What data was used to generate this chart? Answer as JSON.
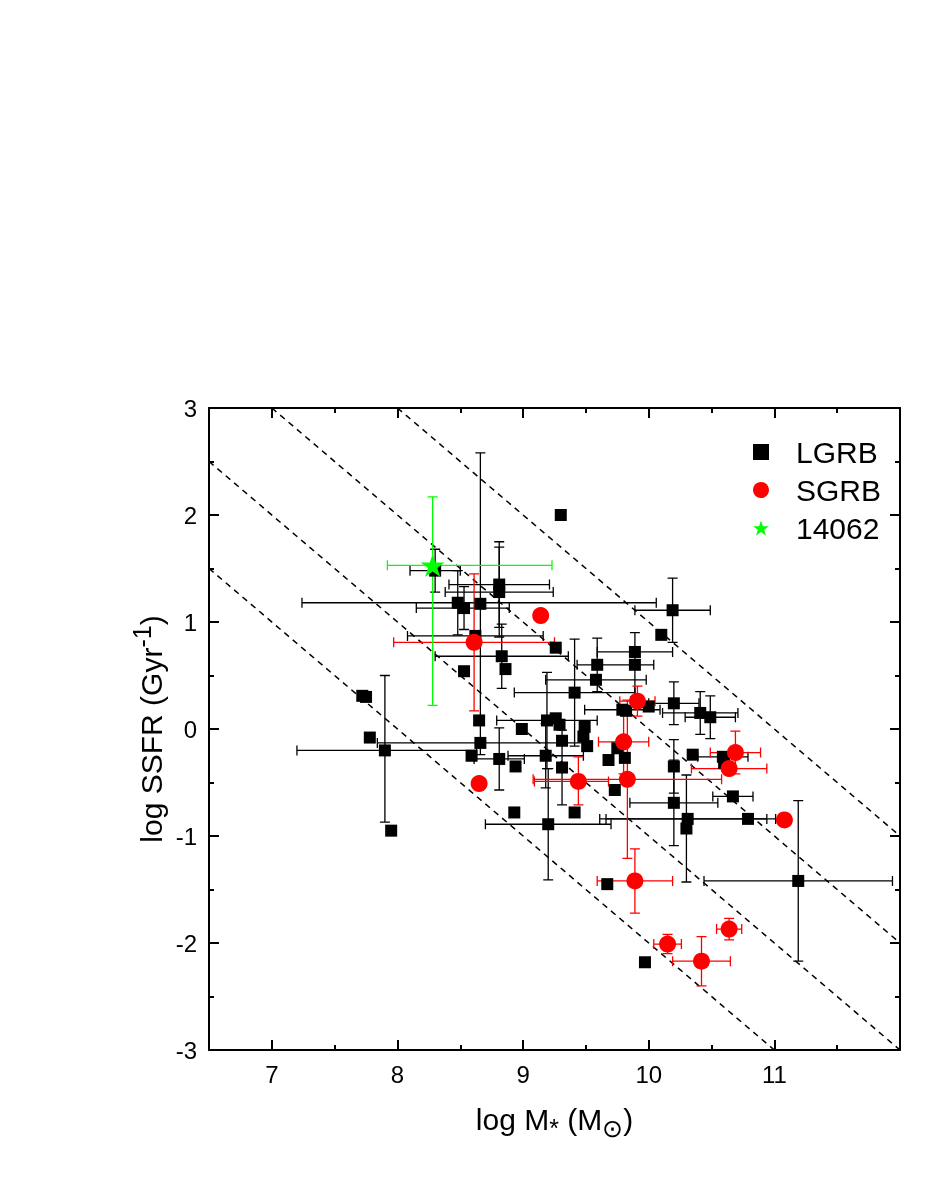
{
  "chart_data": {
    "type": "scatter",
    "xlabel": "log M$_{*}$ (M$_{⊙}$)",
    "ylabel": "log SSFR (Gyr$^{-1}$)",
    "xlim": [
      6.5,
      12
    ],
    "xticks": [
      7,
      {
        "value": 7.5,
        "label": null
      },
      8,
      {
        "value": 8.5,
        "label": null
      },
      9,
      {
        "value": 9.5,
        "label": null
      },
      10,
      {
        "value": 10.5,
        "label": null
      },
      11,
      {
        "value": 11.5,
        "label": null
      }
    ],
    "ylim": [
      -3,
      3
    ],
    "yticks": [
      -3,
      {
        "value": -2.5,
        "label": null
      },
      -2,
      {
        "value": -1.5,
        "label": null
      },
      -1,
      {
        "value": -0.5,
        "label": null
      },
      0,
      {
        "value": 0.5,
        "label": null
      },
      1,
      {
        "value": 1.5,
        "label": null
      },
      2,
      {
        "value": 2.5,
        "label": null
      },
      3
    ],
    "legend": "top right",
    "series": [
      {
        "type": "line",
        "color": "#000000",
        "line_style": "dashed",
        "marker": "none",
        "x": [
          6.5,
          11
        ],
        "values": [
          1.5,
          -3
        ]
      },
      {
        "type": "line",
        "color": "#000000",
        "line_style": "dashed",
        "marker": "none",
        "x": [
          6.5,
          12
        ],
        "values": [
          2.5,
          -3
        ]
      },
      {
        "type": "line",
        "color": "#000000",
        "line_style": "dashed",
        "marker": "none",
        "x": [
          7,
          12
        ],
        "values": [
          3,
          -2
        ]
      },
      {
        "type": "line",
        "color": "#000000",
        "line_style": "dashed",
        "marker": "none",
        "x": [
          8,
          12
        ],
        "values": [
          3,
          -1
        ]
      },
      {
        "name": "LGRB",
        "marker": "square",
        "color": "#000000",
        "x": [
          7.72,
          7.75,
          7.78,
          7.9,
          7.95,
          8.3,
          8.48,
          8.53,
          8.66,
          8.81,
          8.81,
          8.53,
          8.62,
          8.83,
          8.86,
          8.65,
          8.66,
          8.59,
          8.81,
          8.94,
          8.99,
          8.93,
          9.19,
          9.26,
          9.29,
          9.18,
          9.31,
          9.31,
          9.41,
          9.49,
          9.48,
          9.51,
          9.59,
          9.58,
          9.73,
          9.68,
          9.75,
          9.79,
          9.82,
          9.81,
          9.89,
          9.89,
          10.0,
          10.19,
          10.1,
          10.2,
          10.41,
          10.49,
          10.2,
          10.2,
          10.35,
          10.59,
          10.6,
          10.67,
          9.41,
          9.2,
          10.31,
          10.3,
          10.79,
          11.19,
          9.67,
          9.97,
          9.3,
          9.26
        ],
        "values": [
          0.31,
          0.3,
          -0.08,
          -0.2,
          -0.95,
          1.48,
          1.18,
          1.13,
          1.17,
          1.35,
          1.28,
          0.54,
          0.87,
          0.68,
          0.56,
          0.08,
          -0.13,
          -0.25,
          -0.28,
          -0.35,
          0.0,
          -0.78,
          0.08,
          0.1,
          0.04,
          -0.25,
          -0.11,
          -0.36,
          0.34,
          0.02,
          -0.07,
          -0.16,
          0.6,
          0.46,
          -0.57,
          -0.29,
          -0.18,
          0.18,
          0.17,
          -0.27,
          0.72,
          0.6,
          0.21,
          1.11,
          0.88,
          0.24,
          0.15,
          0.11,
          -0.35,
          -0.69,
          -0.24,
          -0.26,
          -0.32,
          -0.63,
          -0.78,
          -0.89,
          -0.84,
          -0.93,
          -0.84,
          -1.42,
          -1.45,
          -2.18,
          2.0,
          0.76
        ],
        "xerrors": [
          null,
          null,
          null,
          [
            7.2,
            8.63
          ],
          null,
          0.2,
          [
            7.24,
            10.06
          ],
          [
            8.15,
            8.89
          ],
          null,
          0.4,
          0.43,
          null,
          [
            8.08,
            9.16
          ],
          0.53,
          null,
          null,
          [
            7.84,
            9.52
          ],
          null,
          0.2,
          null,
          null,
          null,
          0.4,
          null,
          null,
          0.3,
          null,
          null,
          0.48,
          null,
          null,
          null,
          null,
          0.4,
          null,
          null,
          null,
          0.3,
          null,
          null,
          0.3,
          [
            9.43,
            10.04
          ],
          null,
          0.3,
          null,
          0.2,
          0.3,
          0.2,
          null,
          0.35,
          null,
          0.2,
          null,
          0.16,
          null,
          0.5,
          0.7,
          null,
          [
            9.66,
            10.94
          ],
          0.75,
          null,
          null,
          null,
          null
        ],
        "errors": [
          null,
          null,
          null,
          [
            -0.87,
            0.5
          ],
          null,
          0.2,
          0.3,
          0.2,
          1.41,
          0.4,
          0.42,
          null,
          null,
          0.3,
          null,
          null,
          null,
          null,
          0.29,
          null,
          null,
          null,
          0.45,
          null,
          null,
          0.3,
          null,
          0.35,
          0.5,
          null,
          null,
          null,
          0.25,
          null,
          null,
          null,
          null,
          null,
          null,
          null,
          null,
          0.3,
          null,
          0.3,
          null,
          0.2,
          0.2,
          0.2,
          0.25,
          0.4,
          null,
          null,
          null,
          null,
          null,
          0.52,
          null,
          0.5,
          null,
          0.75,
          null,
          null,
          null,
          null
        ]
      },
      {
        "name": "SGRB",
        "marker": "circle",
        "color": "#ff0000",
        "x": [
          8.61,
          9.14,
          8.65,
          9.91,
          9.8,
          9.44,
          9.83,
          10.69,
          10.64,
          11.08,
          9.89,
          10.64,
          10.15,
          10.42
        ],
        "values": [
          0.81,
          1.06,
          -0.51,
          0.26,
          -0.12,
          -0.49,
          -0.47,
          -0.22,
          -0.37,
          -0.85,
          -1.42,
          -1.87,
          -2.01,
          -2.17
        ],
        "xerrors": [
          [
            7.97,
            9.25
          ],
          null,
          null,
          0.14,
          0.2,
          [
            9.09,
            9.68
          ],
          0.75,
          0.2,
          0.3,
          null,
          0.3,
          0.1,
          0.11,
          0.23
        ],
        "errors": [
          [
            0.17,
            1.45
          ],
          null,
          null,
          0.14,
          0.3,
          [
            -0.71,
            -0.26
          ],
          0.74,
          0.2,
          null,
          null,
          0.3,
          0.1,
          0.09,
          0.23
        ]
      },
      {
        "name": "14062",
        "marker": "star",
        "color": "#00ff00",
        "x": [
          8.28
        ],
        "values": [
          1.53
        ],
        "xerrors": [
          [
            7.92,
            9.23
          ]
        ],
        "errors": [
          [
            0.22,
            2.17
          ]
        ]
      }
    ]
  }
}
